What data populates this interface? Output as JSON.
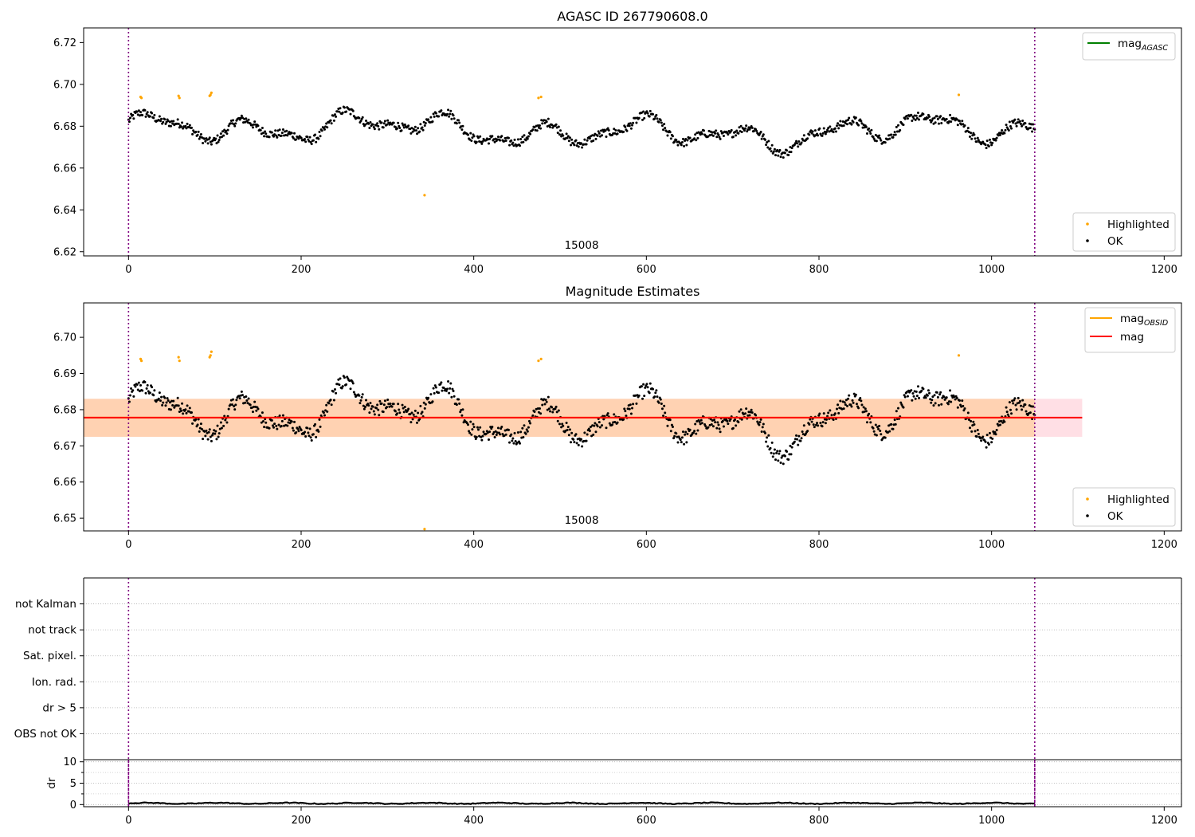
{
  "figure": {
    "panel1_title": "AGASC ID 267790608.0",
    "panel2_title": "Magnitude Estimates",
    "obsid_label": "15008"
  },
  "chart_data": [
    {
      "type": "scatter",
      "title": "AGASC ID 267790608.0",
      "xlim": [
        -52,
        1220
      ],
      "ylim": [
        6.618,
        6.727
      ],
      "xticks": [
        "0",
        "200",
        "400",
        "600",
        "800",
        "1000",
        "1200"
      ],
      "yticks": [
        "6.62",
        "6.64",
        "6.66",
        "6.68",
        "6.70",
        "6.72"
      ],
      "obs_boundaries": [
        0,
        1050
      ],
      "annotation": "15008",
      "legend_lines": [
        {
          "label": "mag",
          "sub": "AGASC",
          "color": "#008000"
        }
      ],
      "legend_points": [
        {
          "label": "Highlighted",
          "color": "#ffa500"
        },
        {
          "label": "OK",
          "color": "#000000"
        }
      ],
      "series": [
        {
          "name": "OK",
          "color": "#000000",
          "n_points": 1050,
          "x_start": 0,
          "x_end": 1050,
          "center": 6.678,
          "amplitude": 0.012
        }
      ],
      "highlighted": [
        [
          14,
          6.694
        ],
        [
          15,
          6.6935
        ],
        [
          58,
          6.6945
        ],
        [
          59,
          6.6935
        ],
        [
          94,
          6.6945
        ],
        [
          95,
          6.695
        ],
        [
          96,
          6.696
        ],
        [
          343,
          6.647
        ],
        [
          475,
          6.6935
        ],
        [
          478,
          6.694
        ],
        [
          962,
          6.695
        ]
      ],
      "grid": false
    },
    {
      "type": "scatter",
      "title": "Magnitude Estimates",
      "xlim": [
        -52,
        1220
      ],
      "ylim": [
        6.6465,
        6.7095
      ],
      "xticks": [
        "0",
        "200",
        "400",
        "600",
        "800",
        "1000",
        "1200"
      ],
      "yticks": [
        "6.65",
        "6.66",
        "6.67",
        "6.68",
        "6.69",
        "6.70"
      ],
      "obs_boundaries": [
        0,
        1050
      ],
      "annotation": "15008",
      "mag": 6.6778,
      "mag_band": [
        6.6725,
        6.683
      ],
      "mag_band_xrange": [
        -52,
        1105
      ],
      "mag_obsid": 6.6778,
      "mag_obsid_band": [
        6.6725,
        6.683
      ],
      "mag_obsid_xrange": [
        -52,
        1050
      ],
      "legend_lines": [
        {
          "label": "mag",
          "sub": "OBSID",
          "color": "#ffa500"
        },
        {
          "label": "mag",
          "sub": "",
          "color": "#ff0000"
        }
      ],
      "legend_points": [
        {
          "label": "Highlighted",
          "color": "#ffa500"
        },
        {
          "label": "OK",
          "color": "#000000"
        }
      ],
      "highlighted": [
        [
          14,
          6.694
        ],
        [
          15,
          6.6935
        ],
        [
          58,
          6.6945
        ],
        [
          59,
          6.6935
        ],
        [
          94,
          6.6945
        ],
        [
          95,
          6.695
        ],
        [
          96,
          6.696
        ],
        [
          343,
          6.647
        ],
        [
          475,
          6.6935
        ],
        [
          478,
          6.694
        ],
        [
          962,
          6.695
        ]
      ],
      "grid": false
    },
    {
      "type": "scatter",
      "title": "",
      "xlim": [
        -52,
        1220
      ],
      "categories": [
        "OBS not OK",
        "dr > 5",
        "Ion. rad.",
        "Sat. pixel.",
        "not track",
        "not Kalman"
      ],
      "obs_boundaries": [
        0,
        1050
      ],
      "grid": true
    },
    {
      "type": "line",
      "title": "",
      "xlim": [
        -52,
        1220
      ],
      "ylim": [
        -0.5,
        10.5
      ],
      "ylabel": "dr",
      "xticks": [
        "0",
        "200",
        "400",
        "600",
        "800",
        "1000",
        "1200"
      ],
      "yticks": [
        "0",
        "5",
        "10"
      ],
      "dr_level": 0.3,
      "obs_boundaries": [
        0,
        1050
      ],
      "grid": true
    }
  ]
}
